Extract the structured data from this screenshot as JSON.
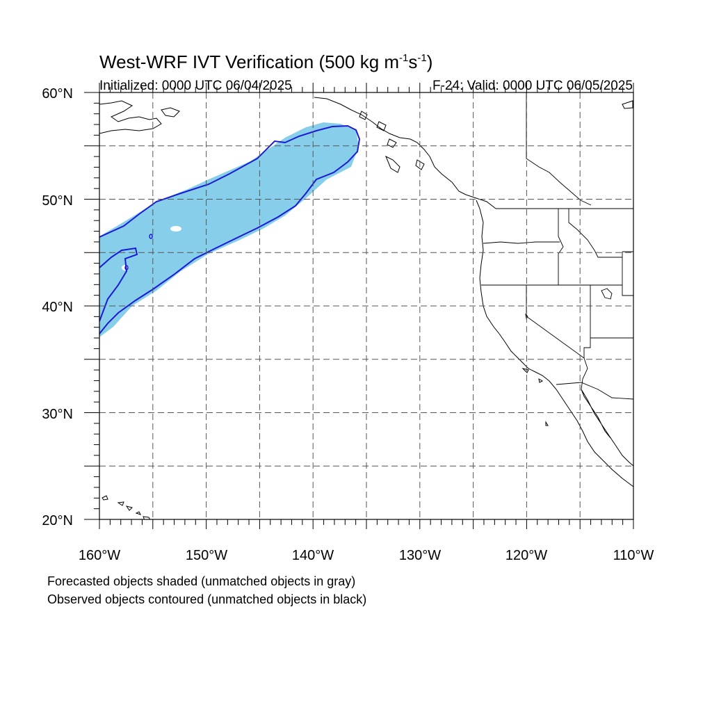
{
  "title": {
    "main": "West-WRF IVT Verification (500 kg m",
    "sup1": "-1",
    "mid": "s",
    "sup2": "-1",
    "close": ")"
  },
  "initialized": "Initialized: 0000 UTC 06/04/2025",
  "valid": "F-24: Valid: 0000 UTC 06/05/2025",
  "lat_labels": [
    "60°N",
    "50°N",
    "40°N",
    "30°N",
    "20°N"
  ],
  "lon_labels": [
    "160°W",
    "150°W",
    "140°W",
    "130°W",
    "120°W",
    "110°W"
  ],
  "map": {
    "lon_range": [
      -160,
      -110
    ],
    "lat_range": [
      20,
      60
    ],
    "grid_spacing_deg": 5,
    "tick_spacing_deg": 1,
    "colors": {
      "forecast_shading": "#87ceeb",
      "observed_contour": "#1a1ad6",
      "coastline": "#000000",
      "gridline": "#555555"
    }
  },
  "notes": {
    "forecast": "Forecasted objects shaded (unmatched objects in gray)",
    "observed": "Observed objects contoured (unmatched objects in black)"
  }
}
